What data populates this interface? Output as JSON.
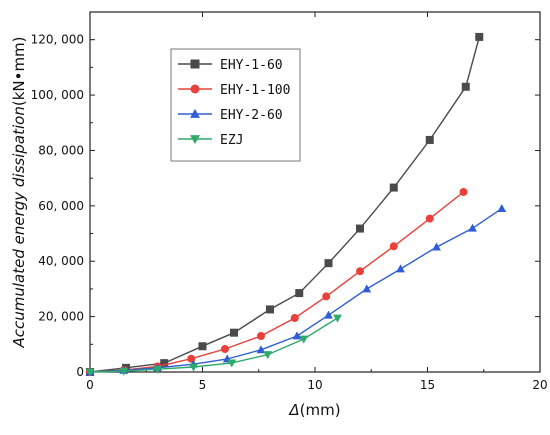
{
  "chart_data": {
    "type": "line",
    "xlabel_italic": "Δ",
    "xlabel_unit": "(mm)",
    "ylabel_italic": "Accumulated energy dissipation",
    "ylabel_unit": "(kN•mm)",
    "xlim": [
      0,
      20
    ],
    "ylim": [
      0,
      130000
    ],
    "xticks": [
      0,
      5,
      10,
      15,
      20
    ],
    "yticks": [
      0,
      20000,
      40000,
      60000,
      80000,
      100000,
      120000
    ],
    "xtick_labels": [
      "0",
      "5",
      "10",
      "15",
      "20"
    ],
    "ytick_labels": [
      "0",
      "20, 000",
      "40, 000",
      "60, 000",
      "80, 000",
      "100, 000",
      "120, 000"
    ],
    "grid": false,
    "legend_position": "top-left",
    "series": [
      {
        "name": "EHY-1-60",
        "color": "#4a4a4a",
        "marker": "square",
        "x": [
          0.0,
          1.6,
          3.3,
          5.0,
          6.4,
          8.0,
          9.3,
          10.6,
          12.0,
          13.5,
          15.1,
          16.7,
          17.3
        ],
        "y": [
          0,
          1500,
          3200,
          9300,
          14200,
          22600,
          28500,
          39300,
          51800,
          66600,
          83800,
          103000,
          121000
        ]
      },
      {
        "name": "EHY-1-100",
        "color": "#e8403a",
        "marker": "circle",
        "x": [
          0.0,
          1.5,
          3.0,
          4.5,
          6.0,
          7.6,
          9.1,
          10.5,
          12.0,
          13.5,
          15.1,
          16.6
        ],
        "y": [
          0,
          700,
          2000,
          4800,
          8300,
          13000,
          19500,
          27300,
          36400,
          45400,
          55400,
          65000
        ]
      },
      {
        "name": "EHY-2-60",
        "color": "#2f5ed8",
        "marker": "triangle-up",
        "x": [
          0.0,
          1.5,
          3.0,
          4.6,
          6.1,
          7.6,
          9.2,
          10.6,
          12.3,
          13.8,
          15.4,
          17.0,
          18.3
        ],
        "y": [
          0,
          600,
          1500,
          2800,
          4700,
          8000,
          13000,
          20500,
          30000,
          37200,
          45100,
          51900,
          59000
        ]
      },
      {
        "name": "EZJ",
        "color": "#2eab6b",
        "marker": "triangle-down",
        "x": [
          0.0,
          1.5,
          3.0,
          4.6,
          6.3,
          7.9,
          9.5,
          11.0
        ],
        "y": [
          0,
          300,
          1000,
          1800,
          3300,
          6300,
          11900,
          19500
        ]
      }
    ]
  }
}
